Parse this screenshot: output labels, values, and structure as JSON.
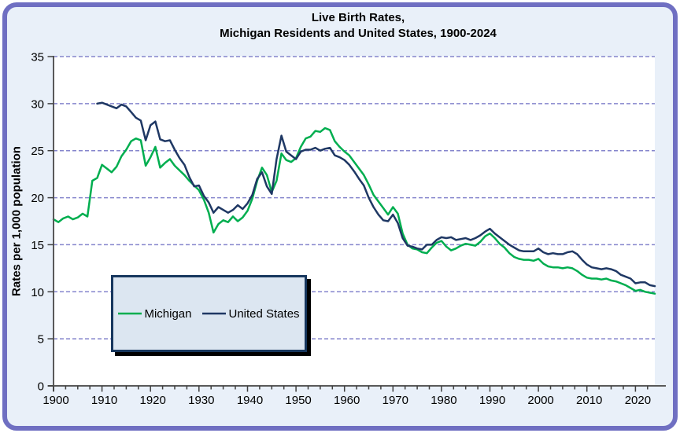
{
  "title": {
    "line1": "Live Birth Rates,",
    "line2": "Michigan Residents and United States, 1900-2024"
  },
  "y_axis": {
    "title": "Rates per 1,000 population",
    "ticks": [
      0,
      5,
      10,
      15,
      20,
      25,
      30,
      35
    ]
  },
  "x_axis": {
    "ticks": [
      1900,
      1910,
      1920,
      1930,
      1940,
      1950,
      1960,
      1970,
      1980,
      1990,
      2000,
      2010,
      2020
    ],
    "minor_step": 2.5
  },
  "legend": {
    "items": [
      {
        "label": "Michigan",
        "color": "#00AE4F"
      },
      {
        "label": "United States",
        "color": "#1F3864"
      }
    ]
  },
  "colors": {
    "chart_background": "#E9F0F9",
    "plot_background": "#FFFFFF",
    "outer_border": "#6F6FC2",
    "gridline": "#8585CC",
    "axis_line": "#595959",
    "tick": "#404040",
    "legend_fill": "#DCE6F1",
    "legend_border": "#17375E",
    "legend_shadow": "#000000",
    "michigan_line": "#00AE4F",
    "us_line": "#1F3864"
  },
  "chart_data": {
    "type": "line",
    "title": "Live Birth Rates, Michigan Residents and United States, 1900-2024",
    "xlabel": "",
    "ylabel": "Rates per 1,000 population",
    "xlim": [
      1900,
      2024
    ],
    "ylim": [
      0,
      35
    ],
    "grid": "horizontal-dashed",
    "legend_position": "inside-lower-left",
    "series": [
      {
        "name": "Michigan",
        "color": "#00AE4F",
        "start_year": 1900,
        "values": [
          17.7,
          17.4,
          17.8,
          18.0,
          17.7,
          17.9,
          18.3,
          18.0,
          21.8,
          22.1,
          23.5,
          23.1,
          22.7,
          23.3,
          24.4,
          25.1,
          26.0,
          26.3,
          26.1,
          23.4,
          24.3,
          25.4,
          23.2,
          23.7,
          24.1,
          23.4,
          22.9,
          22.4,
          21.8,
          21.3,
          20.8,
          19.8,
          18.4,
          16.3,
          17.2,
          17.6,
          17.4,
          18.0,
          17.5,
          17.9,
          18.6,
          19.9,
          21.8,
          23.2,
          22.4,
          20.6,
          21.8,
          24.7,
          24.0,
          23.8,
          24.2,
          25.4,
          26.3,
          26.5,
          27.1,
          27.0,
          27.4,
          27.2,
          26.0,
          25.4,
          24.9,
          24.5,
          23.8,
          23.1,
          22.4,
          21.4,
          20.3,
          19.6,
          18.9,
          18.2,
          19.0,
          18.3,
          16.2,
          15.0,
          14.6,
          14.5,
          14.2,
          14.1,
          14.7,
          15.2,
          15.4,
          14.8,
          14.4,
          14.6,
          14.9,
          15.1,
          15.0,
          14.9,
          15.3,
          15.9,
          16.2,
          15.7,
          15.1,
          14.7,
          14.1,
          13.7,
          13.5,
          13.4,
          13.4,
          13.3,
          13.5,
          13.0,
          12.7,
          12.6,
          12.6,
          12.5,
          12.6,
          12.5,
          12.2,
          11.8,
          11.5,
          11.4,
          11.4,
          11.3,
          11.4,
          11.2,
          11.1,
          10.9,
          10.7,
          10.4,
          10.1,
          10.2,
          10.0,
          9.9,
          9.8
        ]
      },
      {
        "name": "United States",
        "color": "#1F3864",
        "start_year": 1909,
        "values": [
          30.0,
          30.1,
          29.9,
          29.7,
          29.5,
          29.9,
          29.7,
          29.1,
          28.5,
          28.2,
          26.1,
          27.7,
          28.1,
          26.2,
          26.0,
          26.1,
          25.1,
          24.2,
          23.5,
          22.2,
          21.2,
          21.3,
          20.2,
          19.5,
          18.4,
          19.0,
          18.7,
          18.4,
          18.7,
          19.2,
          18.8,
          19.4,
          20.3,
          22.0,
          22.7,
          21.2,
          20.4,
          24.1,
          26.6,
          24.9,
          24.5,
          24.1,
          24.9,
          25.1,
          25.1,
          25.3,
          25.0,
          25.2,
          25.3,
          24.5,
          24.3,
          24.0,
          23.5,
          22.8,
          22.0,
          21.3,
          20.0,
          19.0,
          18.2,
          17.6,
          17.5,
          18.2,
          17.3,
          15.7,
          14.9,
          14.8,
          14.6,
          14.5,
          15.0,
          15.0,
          15.5,
          15.8,
          15.7,
          15.8,
          15.5,
          15.6,
          15.7,
          15.5,
          15.7,
          16.0,
          16.4,
          16.7,
          16.2,
          15.8,
          15.4,
          15.0,
          14.7,
          14.4,
          14.3,
          14.3,
          14.3,
          14.6,
          14.2,
          14.0,
          14.1,
          14.0,
          14.0,
          14.2,
          14.3,
          14.0,
          13.4,
          12.9,
          12.6,
          12.5,
          12.4,
          12.5,
          12.4,
          12.2,
          11.8,
          11.6,
          11.4,
          10.9,
          11.0,
          11.0,
          10.7,
          10.6
        ]
      }
    ]
  }
}
